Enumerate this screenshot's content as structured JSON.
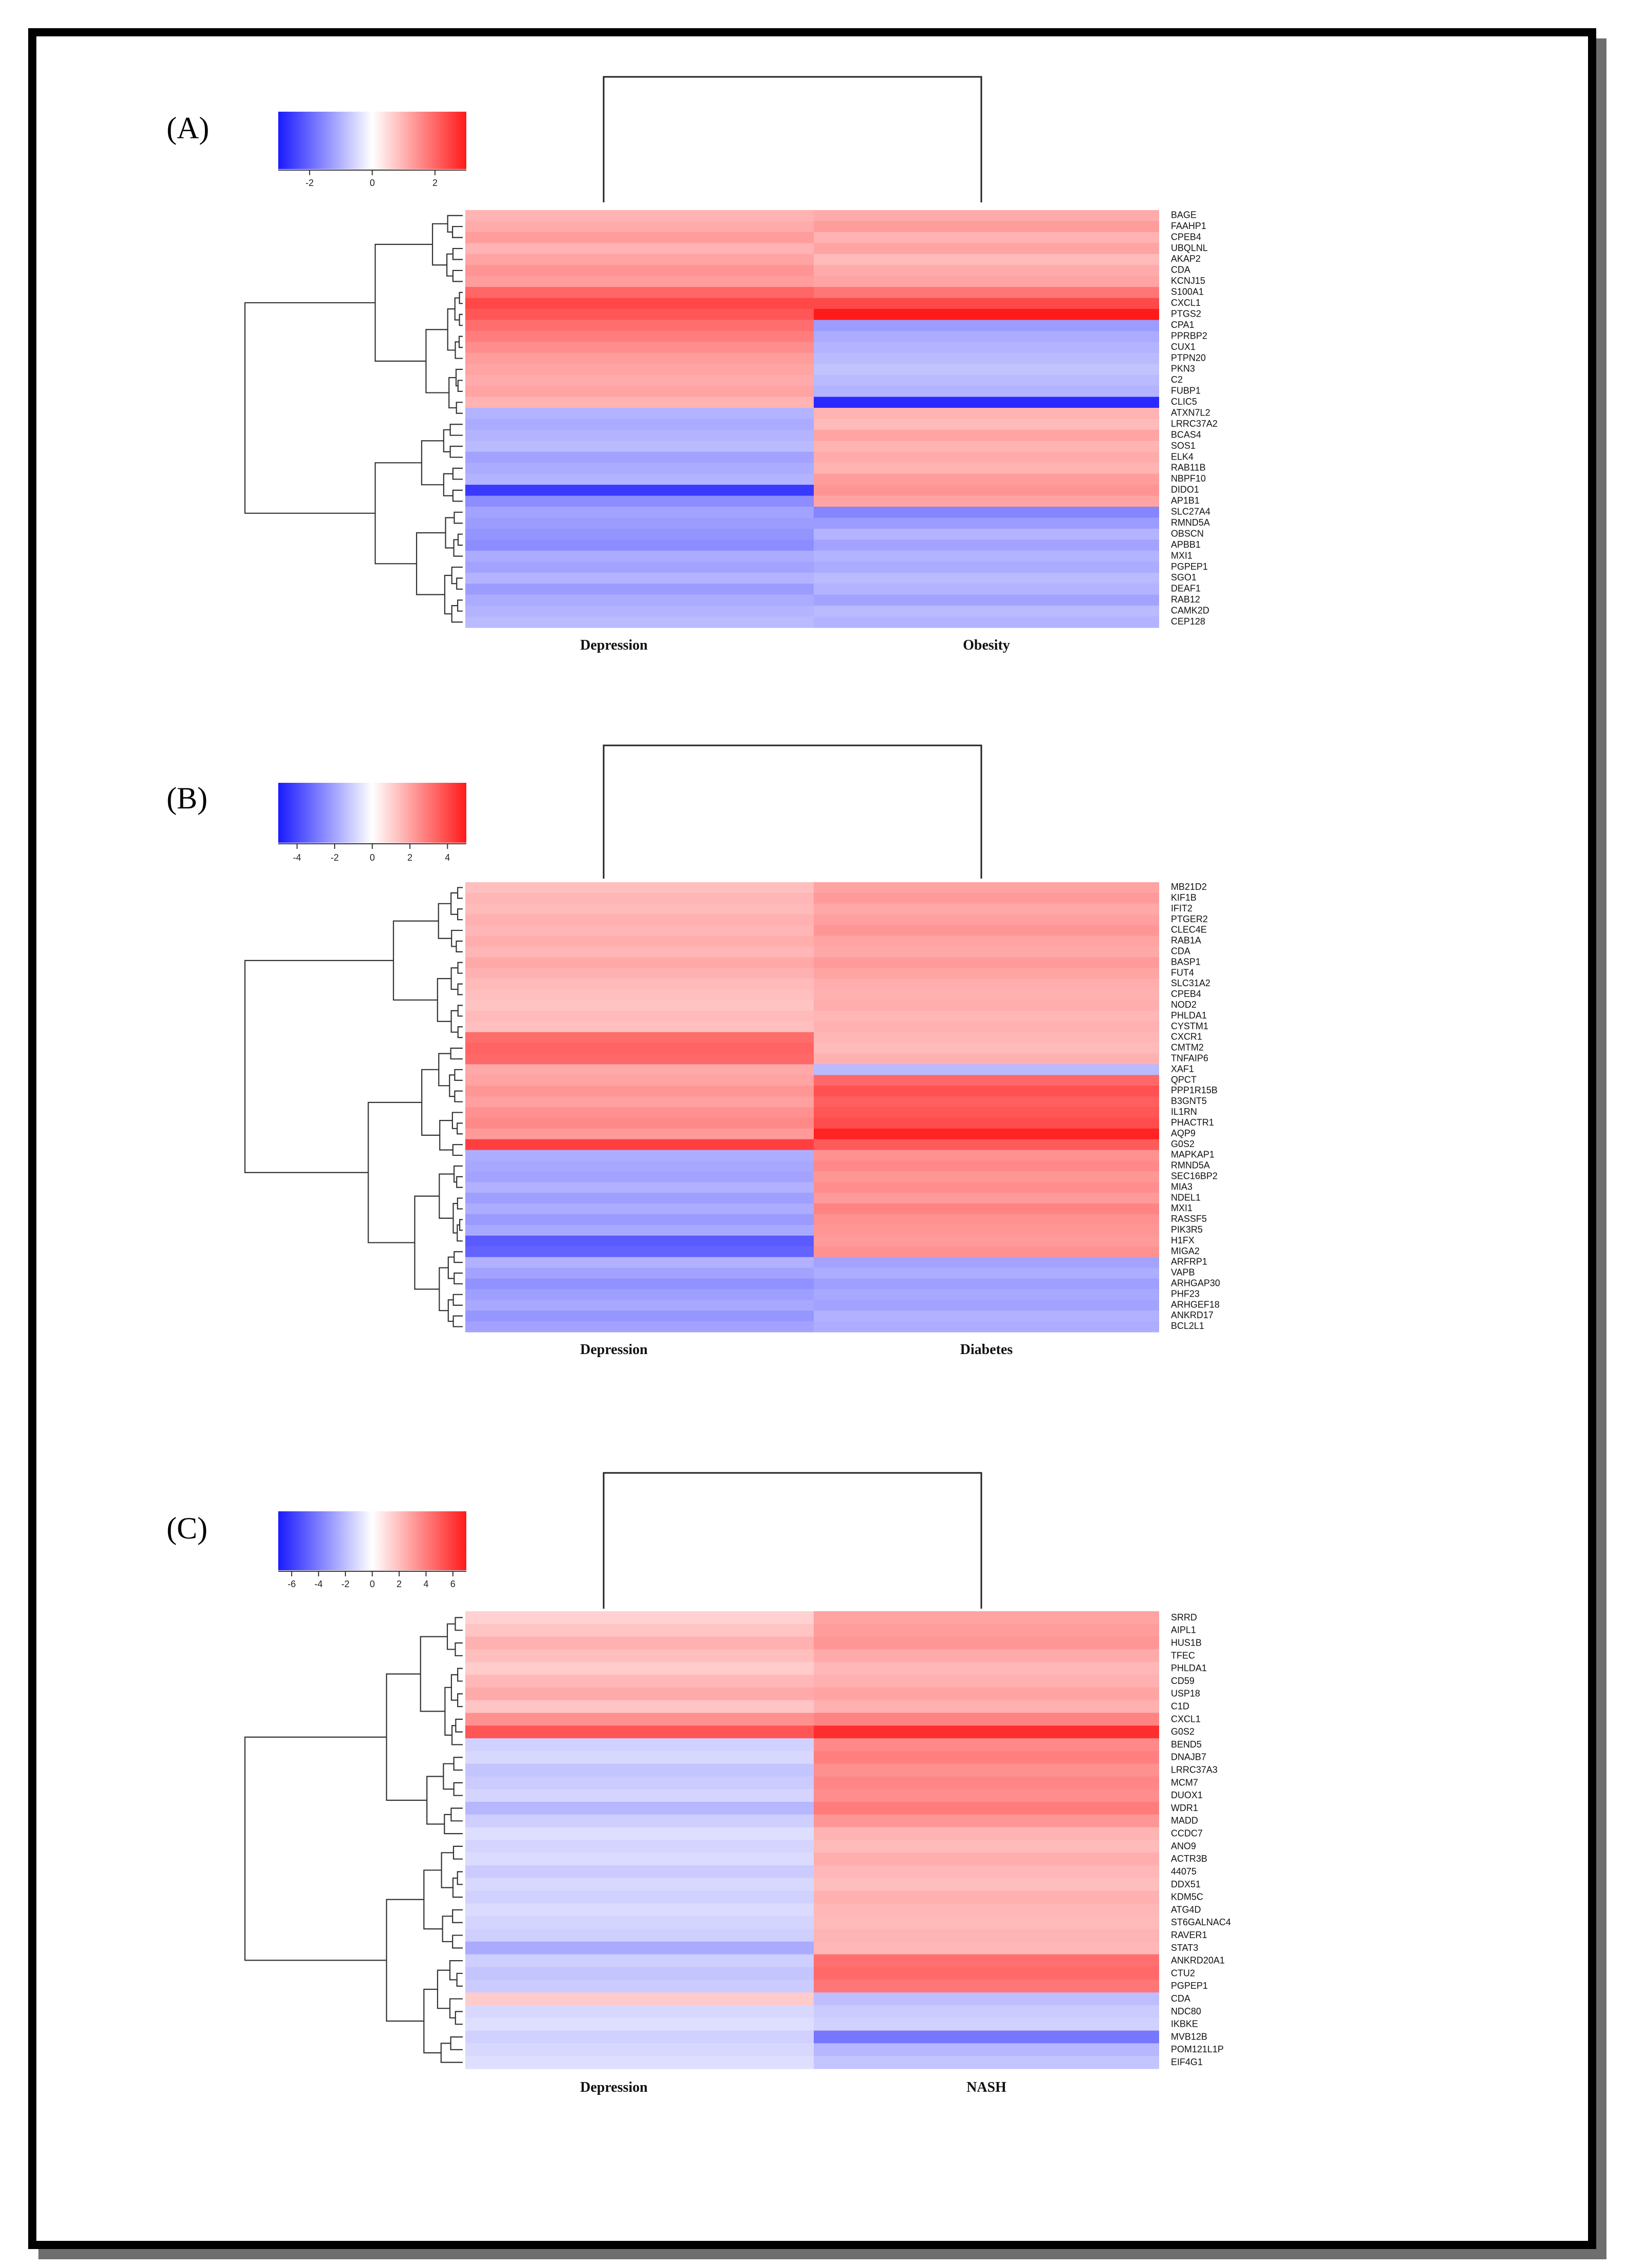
{
  "chart_data": [
    {
      "type": "heatmap",
      "panel_label": "(A)",
      "columns": [
        "Depression",
        "Obesity"
      ],
      "colorbar": {
        "ticks": [
          "-2",
          "0",
          "2"
        ],
        "range": [
          -3,
          3
        ],
        "low_color": "#1a1aff",
        "mid_color": "#ffffff",
        "high_color": "#ff1a1a"
      },
      "row_labels": [
        "BAGE",
        "FAAHP1",
        "CPEB4",
        "UBQLNL",
        "AKAP2",
        "CDA",
        "KCNJ15",
        "S100A1",
        "CXCL1",
        "PTGS2",
        "CPA1",
        "PPRBP2",
        "CUX1",
        "PTPN20",
        "PKN3",
        "C2",
        "FUBP1",
        "CLIC5",
        "ATXN7L2",
        "LRRC37A2",
        "BCAS4",
        "SOS1",
        "ELK4",
        "RAB11B",
        "NBPF10",
        "DIDO1",
        "AP1B1",
        "SLC27A4",
        "RMND5A",
        "OBSCN",
        "APBB1",
        "MXI1",
        "PGPEP1",
        "SGO1",
        "DEAF1",
        "RAB12",
        "CAMK2D",
        "CEP128"
      ],
      "values": [
        [
          1.0,
          1.1
        ],
        [
          1.1,
          1.3
        ],
        [
          1.3,
          1.0
        ],
        [
          1.0,
          1.2
        ],
        [
          1.2,
          0.9
        ],
        [
          1.4,
          1.1
        ],
        [
          1.3,
          1.2
        ],
        [
          2.0,
          1.8
        ],
        [
          2.4,
          2.4
        ],
        [
          2.2,
          3.2
        ],
        [
          1.9,
          -1.3
        ],
        [
          1.7,
          -1.1
        ],
        [
          1.5,
          -1.0
        ],
        [
          1.3,
          -0.9
        ],
        [
          1.2,
          -0.8
        ],
        [
          1.1,
          -0.9
        ],
        [
          1.2,
          -1.0
        ],
        [
          1.0,
          -2.8
        ],
        [
          -1.0,
          1.0
        ],
        [
          -1.1,
          0.9
        ],
        [
          -1.0,
          1.2
        ],
        [
          -0.9,
          1.0
        ],
        [
          -1.2,
          1.1
        ],
        [
          -1.1,
          1.0
        ],
        [
          -1.0,
          1.3
        ],
        [
          -2.6,
          1.4
        ],
        [
          -1.5,
          1.2
        ],
        [
          -1.2,
          -1.6
        ],
        [
          -1.3,
          -1.3
        ],
        [
          -1.4,
          -1.0
        ],
        [
          -1.5,
          -1.2
        ],
        [
          -1.1,
          -1.0
        ],
        [
          -1.2,
          -1.1
        ],
        [
          -1.0,
          -0.9
        ],
        [
          -1.3,
          -1.0
        ],
        [
          -1.1,
          -1.2
        ],
        [
          -1.0,
          -0.9
        ],
        [
          -0.9,
          -1.0
        ]
      ]
    },
    {
      "type": "heatmap",
      "panel_label": "(B)",
      "columns": [
        "Depression",
        "Diabetes"
      ],
      "colorbar": {
        "ticks": [
          "-4",
          "-2",
          "0",
          "2",
          "4"
        ],
        "range": [
          -5,
          5
        ],
        "low_color": "#1a1aff",
        "mid_color": "#ffffff",
        "high_color": "#ff1a1a"
      },
      "row_labels": [
        "MB21D2",
        "KIF1B",
        "IFIT2",
        "PTGER2",
        "CLEC4E",
        "RAB1A",
        "CDA",
        "BASP1",
        "FUT4",
        "SLC31A2",
        "CPEB4",
        "NOD2",
        "PHLDA1",
        "CYSTM1",
        "CXCR1",
        "CMTM2",
        "TNFAIP6",
        "XAF1",
        "QPCT",
        "PPP1R15B",
        "B3GNT5",
        "IL1RN",
        "PHACTR1",
        "AQP9",
        "G0S2",
        "MAPKAP1",
        "RMND5A",
        "SEC16BP2",
        "MIA3",
        "NDEL1",
        "MXI1",
        "RASSF5",
        "PIK3R5",
        "H1FX",
        "MIGA2",
        "ARFRP1",
        "VAPB",
        "ARHGAP30",
        "PHF23",
        "ARHGEF18",
        "ANKRD17",
        "BCL2L1"
      ],
      "values": [
        [
          1.4,
          2.0
        ],
        [
          1.6,
          2.2
        ],
        [
          1.5,
          1.9
        ],
        [
          1.7,
          2.1
        ],
        [
          1.6,
          2.3
        ],
        [
          1.8,
          2.0
        ],
        [
          1.6,
          1.9
        ],
        [
          1.9,
          2.2
        ],
        [
          1.7,
          2.0
        ],
        [
          1.5,
          1.8
        ],
        [
          1.4,
          1.7
        ],
        [
          1.3,
          1.8
        ],
        [
          1.5,
          1.6
        ],
        [
          1.4,
          1.7
        ],
        [
          3.2,
          1.6
        ],
        [
          3.4,
          1.5
        ],
        [
          3.3,
          1.7
        ],
        [
          1.9,
          -1.5
        ],
        [
          2.0,
          3.3
        ],
        [
          2.3,
          3.8
        ],
        [
          2.1,
          3.5
        ],
        [
          2.4,
          3.7
        ],
        [
          2.6,
          3.9
        ],
        [
          2.2,
          4.8
        ],
        [
          4.2,
          3.6
        ],
        [
          -1.8,
          2.4
        ],
        [
          -1.9,
          2.6
        ],
        [
          -2.0,
          2.3
        ],
        [
          -1.7,
          2.5
        ],
        [
          -2.1,
          2.2
        ],
        [
          -1.8,
          2.7
        ],
        [
          -2.2,
          2.4
        ],
        [
          -1.9,
          2.3
        ],
        [
          -3.6,
          2.2
        ],
        [
          -3.4,
          2.4
        ],
        [
          -1.7,
          -2.0
        ],
        [
          -2.0,
          -1.8
        ],
        [
          -2.4,
          -2.1
        ],
        [
          -2.1,
          -1.9
        ],
        [
          -1.9,
          -2.0
        ],
        [
          -2.3,
          -1.7
        ],
        [
          -2.0,
          -1.8
        ]
      ]
    },
    {
      "type": "heatmap",
      "panel_label": "(C)",
      "columns": [
        "Depression",
        "NASH"
      ],
      "colorbar": {
        "ticks": [
          "-6",
          "-4",
          "-2",
          "0",
          "2",
          "4",
          "6"
        ],
        "range": [
          -7,
          7
        ],
        "low_color": "#1a1aff",
        "mid_color": "#ffffff",
        "high_color": "#ff1a1a"
      },
      "row_labels": [
        "SRRD",
        "AIPL1",
        "HUS1B",
        "TFEC",
        "PHLDA1",
        "CD59",
        "USP18",
        "C1D",
        "CXCL1",
        "G0S2",
        "BEND5",
        "DNAJB7",
        "LRRC37A3",
        "MCM7",
        "DUOX1",
        "WDR1",
        "MADD",
        "CCDC7",
        "ANO9",
        "ACTR3B",
        "44075",
        "DDX51",
        "KDM5C",
        "ATG4D",
        "ST6GALNAC4",
        "RAVER1",
        "STAT3",
        "ANKRD20A1",
        "CTU2",
        "PGPEP1",
        "CDA",
        "NDC80",
        "IKBKE",
        "MVB12B",
        "POM121L1P",
        "EIF4G1"
      ],
      "values": [
        [
          1.4,
          2.8
        ],
        [
          1.8,
          3.0
        ],
        [
          2.4,
          3.2
        ],
        [
          2.0,
          2.6
        ],
        [
          1.6,
          2.2
        ],
        [
          2.2,
          2.4
        ],
        [
          2.6,
          2.8
        ],
        [
          1.8,
          2.4
        ],
        [
          3.4,
          3.8
        ],
        [
          5.2,
          6.4
        ],
        [
          -1.4,
          3.6
        ],
        [
          -1.2,
          3.9
        ],
        [
          -1.8,
          3.4
        ],
        [
          -1.6,
          3.7
        ],
        [
          -1.3,
          3.5
        ],
        [
          -2.2,
          4.0
        ],
        [
          -1.5,
          3.2
        ],
        [
          -1.0,
          2.3
        ],
        [
          -1.3,
          2.1
        ],
        [
          -1.1,
          2.5
        ],
        [
          -1.6,
          2.2
        ],
        [
          -1.2,
          2.0
        ],
        [
          -1.4,
          2.4
        ],
        [
          -1.1,
          2.2
        ],
        [
          -1.3,
          2.1
        ],
        [
          -1.5,
          2.3
        ],
        [
          -2.6,
          2.2
        ],
        [
          -1.5,
          4.4
        ],
        [
          -1.8,
          4.6
        ],
        [
          -1.6,
          4.2
        ],
        [
          1.6,
          -2.0
        ],
        [
          -1.2,
          -1.6
        ],
        [
          -1.0,
          -1.4
        ],
        [
          -1.4,
          -4.2
        ],
        [
          -1.2,
          -2.2
        ],
        [
          -1.0,
          -1.8
        ]
      ]
    }
  ]
}
